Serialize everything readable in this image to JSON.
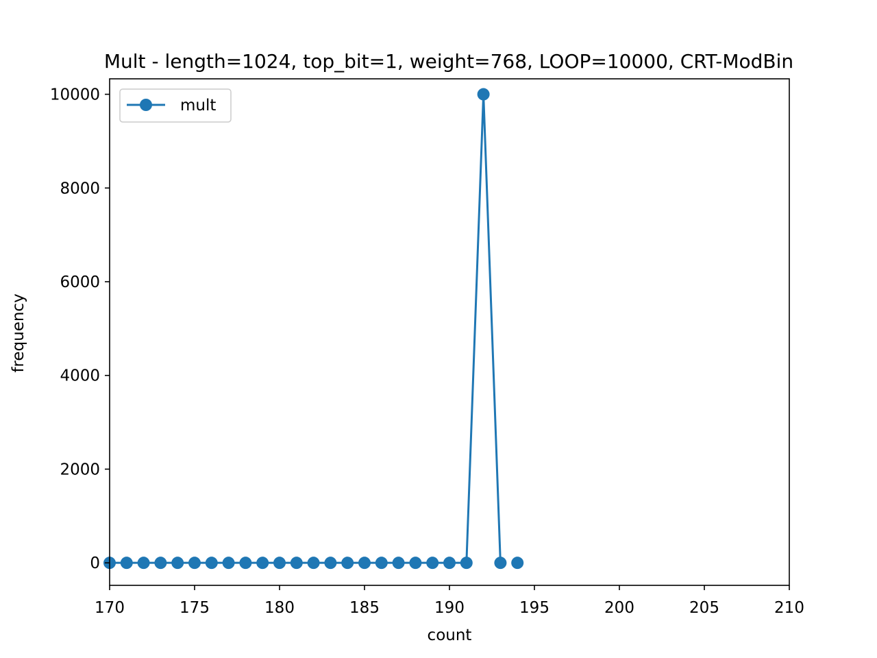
{
  "chart_data": {
    "type": "line",
    "title": "Mult - length=1024, top_bit=1, weight=768, LOOP=10000, CRT-ModBin",
    "xlabel": "count",
    "ylabel": "frequency",
    "xlim": [
      170,
      210
    ],
    "ylim": [
      -480,
      10330
    ],
    "xticks": [
      170,
      175,
      180,
      185,
      190,
      195,
      200,
      205,
      210
    ],
    "yticks": [
      0,
      2000,
      4000,
      6000,
      8000,
      10000
    ],
    "grid": false,
    "legend_position": "upper-left",
    "series": [
      {
        "name": "mult",
        "color": "#1f77b4",
        "marker": "circle",
        "segments": [
          {
            "x": [
              170,
              171,
              172,
              173,
              174,
              175,
              176,
              177,
              178,
              179,
              180,
              181,
              182,
              183,
              184,
              185,
              186,
              187,
              188,
              189,
              190,
              191,
              192,
              193
            ],
            "y": [
              0,
              0,
              0,
              0,
              0,
              0,
              0,
              0,
              0,
              0,
              0,
              0,
              0,
              0,
              0,
              0,
              0,
              0,
              0,
              0,
              0,
              0,
              10000,
              0
            ]
          },
          {
            "x": [
              194
            ],
            "y": [
              0
            ]
          }
        ]
      }
    ]
  }
}
